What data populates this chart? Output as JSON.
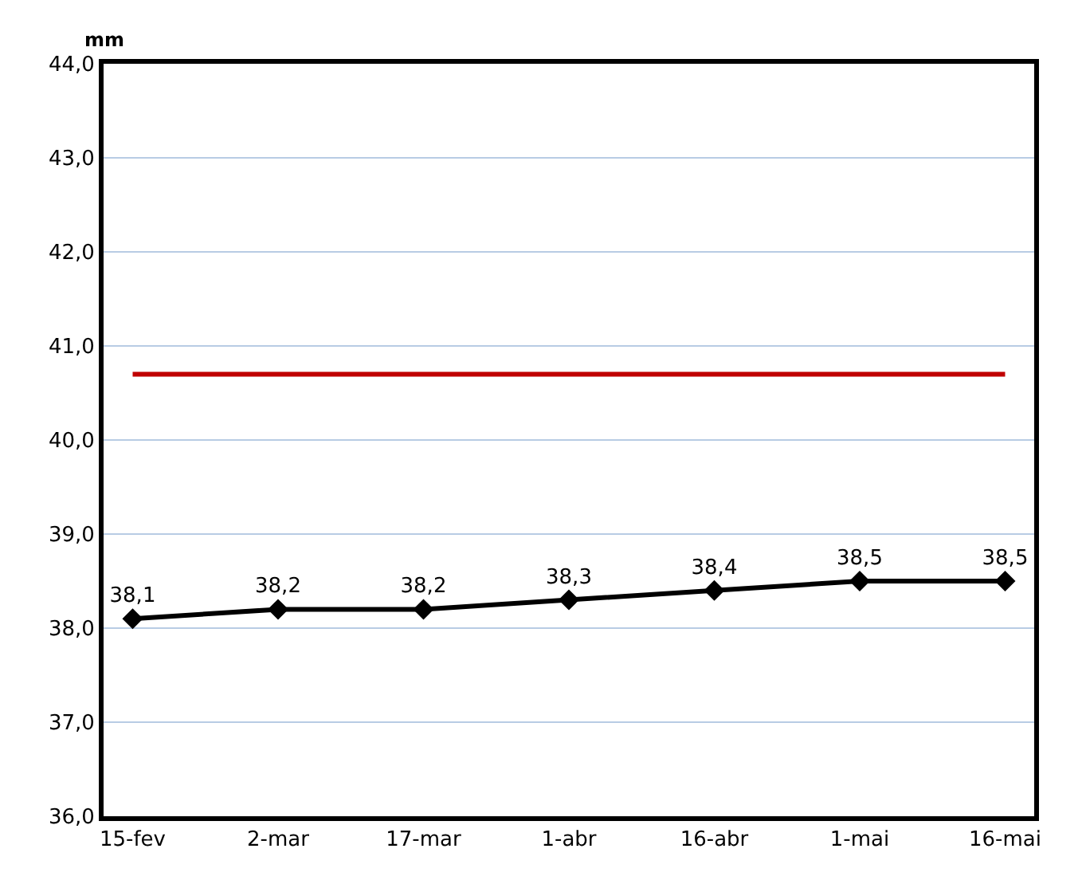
{
  "chart_data": {
    "type": "line",
    "ylabel": "mm",
    "categories": [
      "15-fev",
      "2-mar",
      "17-mar",
      "1-abr",
      "16-abr",
      "1-mai",
      "16-mai"
    ],
    "series": [
      {
        "color": "#000000",
        "values": [
          38.1,
          38.2,
          38.2,
          38.3,
          38.4,
          38.5,
          38.5
        ],
        "value_labels": [
          "38,1",
          "38,2",
          "38,2",
          "38,3",
          "38,4",
          "38,5",
          "38,5"
        ]
      }
    ],
    "ylim": [
      36,
      44
    ],
    "yticks": [
      {
        "value": 36,
        "label": "36,0"
      },
      {
        "value": 37,
        "label": "37,0"
      },
      {
        "value": 38,
        "label": "38,0"
      },
      {
        "value": 39,
        "label": "39,0"
      },
      {
        "value": 40,
        "label": "40,0"
      },
      {
        "value": 41,
        "label": "41,0"
      },
      {
        "value": 42,
        "label": "42,0"
      },
      {
        "value": 43,
        "label": "43,0"
      },
      {
        "value": 44,
        "label": "44,0"
      }
    ],
    "ref_lines": [
      {
        "axis": "y",
        "value": 40.7,
        "color": "#c00000"
      }
    ],
    "grid": "y",
    "marker": "diamond",
    "line_style": "solid"
  }
}
